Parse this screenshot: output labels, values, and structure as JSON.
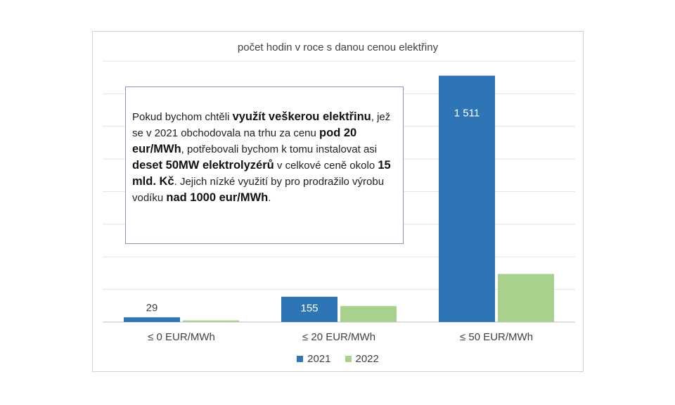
{
  "chart_data": {
    "type": "bar",
    "title": "počet hodin v roce s danou cenou elektřiny",
    "categories": [
      "≤ 0 EUR/MWh",
      "≤ 20 EUR/MWh",
      "≤ 50 EUR/MWh"
    ],
    "series": [
      {
        "name": "2021",
        "color": "#2e75b6",
        "values": [
          29,
          155,
          1511
        ],
        "data_labels": [
          "29",
          "155",
          "1 511"
        ]
      },
      {
        "name": "2022",
        "color": "#a9d18e",
        "values": [
          10,
          98,
          295
        ]
      }
    ],
    "ylim": [
      0,
      1600
    ],
    "grid": true,
    "legend": "bottom-center"
  },
  "annotation": {
    "segments": [
      {
        "text": "Pokud bychom chtěli ",
        "bold": false
      },
      {
        "text": "využít veškerou elektřinu",
        "bold": true
      },
      {
        "text": ", jež se v 2021 obchodovala na trhu za cenu ",
        "bold": false
      },
      {
        "text": "pod 20 eur/MWh",
        "bold": true
      },
      {
        "text": ", potřebovali bychom k tomu instalovat asi ",
        "bold": false
      },
      {
        "text": "deset 50MW elektrolyzérů",
        "bold": true
      },
      {
        "text": " v celkové ceně okolo ",
        "bold": false
      },
      {
        "text": "15 mld. Kč",
        "bold": true
      },
      {
        "text": ". Jejich nízké využití by pro prodražilo výrobu vodíku ",
        "bold": false
      },
      {
        "text": "nad 1000 eur/MWh",
        "bold": true
      },
      {
        "text": ".",
        "bold": false
      }
    ]
  }
}
